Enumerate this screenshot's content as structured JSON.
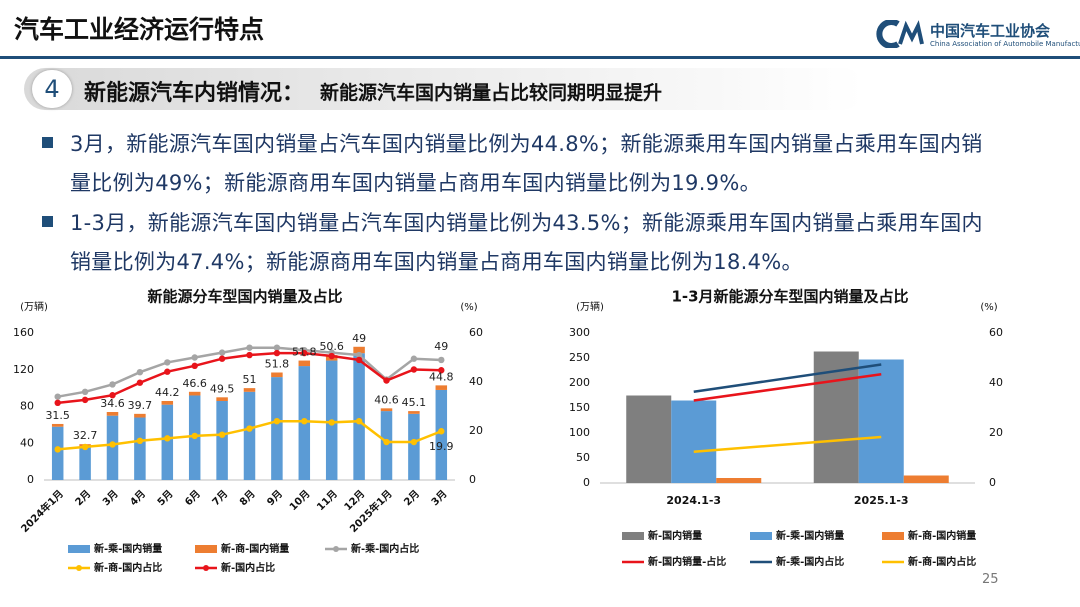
{
  "header": {
    "title": "汽车工业经济运行特点",
    "logo_cn": "中国汽车工业协会",
    "logo_en": "China Association of Automobile Manufacturers"
  },
  "section": {
    "number": "4",
    "heading": "新能源汽车内销情况：",
    "subheading": "新能源汽车国内销量占比较同期明显提升"
  },
  "bullets": [
    [
      "3月，新能源汽车国内销量占汽车国内销量比例为44.8%；新能源乘用车国内销量占乘用车国内销",
      "量比例为49%；新能源商用车国内销量占商用车国内销量比例为19.9%。"
    ],
    [
      "1-3月，新能源汽车国内销量占汽车国内销量比例为43.5%；新能源乘用车国内销量占乘用车国内",
      "销量比例为47.4%；新能源商用车国内销量占商用车国内销量比例为18.4%。"
    ]
  ],
  "page_number": "25",
  "chart_data": [
    {
      "type": "combo",
      "title": "新能源分车型国内销量及占比",
      "y_label": "(万辆)",
      "y2_label": "(%)",
      "bar_mode": "stacked",
      "categories": [
        "2024年1月",
        "2月",
        "3月",
        "4月",
        "5月",
        "6月",
        "7月",
        "8月",
        "9月",
        "10月",
        "11月",
        "12月",
        "2025年1月",
        "2月",
        "3月"
      ],
      "ylim": [
        0,
        160
      ],
      "yticks": [
        0,
        40,
        80,
        120,
        160
      ],
      "y2lim": [
        0,
        60
      ],
      "y2ticks": [
        0,
        20,
        40,
        60
      ],
      "series": [
        {
          "name": "新-乘-国内销量",
          "kind": "bar",
          "color": "#5b9bd5",
          "values": [
            58,
            36,
            70,
            68,
            82,
            92,
            86,
            96,
            112,
            124,
            130,
            138,
            75,
            72,
            98
          ]
        },
        {
          "name": "新-商-国内销量",
          "kind": "bar",
          "color": "#ed7d31",
          "values": [
            3,
            3,
            4,
            4,
            4,
            4,
            4,
            4,
            5,
            6,
            6,
            7,
            3,
            3,
            5
          ]
        },
        {
          "name": "新-乘-国内占比",
          "kind": "line",
          "axis": "y2",
          "color": "#a5a5a5",
          "markers": true,
          "labels": "last",
          "label_position": "above",
          "values": [
            34,
            36,
            39,
            44,
            48,
            50,
            52,
            54,
            54,
            53,
            52,
            51,
            41,
            49.5,
            49
          ]
        },
        {
          "name": "新-商-国内占比",
          "kind": "line",
          "axis": "y2",
          "color": "#ffc000",
          "markers": true,
          "labels": "last",
          "label_position": "below",
          "values": [
            12.5,
            13.5,
            14.5,
            16,
            17,
            18,
            18.5,
            21,
            24,
            24,
            23.5,
            24,
            15.5,
            15.5,
            19.9
          ]
        },
        {
          "name": "新-国内占比",
          "kind": "line",
          "axis": "y2",
          "color": "#e8141b",
          "markers": true,
          "labels": "all",
          "label_position": "bar-top",
          "values": [
            31.5,
            32.7,
            34.6,
            39.7,
            44.2,
            46.6,
            49.5,
            51,
            51.8,
            51.8,
            50.6,
            49,
            40.6,
            45.1,
            44.8
          ]
        }
      ]
    },
    {
      "type": "combo",
      "title": "1-3月新能源分车型国内销量及占比",
      "y_label": "(万辆)",
      "y2_label": "(%)",
      "bar_mode": "grouped",
      "categories": [
        "2024.1-3",
        "2025.1-3"
      ],
      "ylim": [
        0,
        300
      ],
      "yticks": [
        0,
        50,
        100,
        150,
        200,
        250,
        300
      ],
      "y2lim": [
        0,
        60
      ],
      "y2ticks": [
        0,
        20,
        40,
        60
      ],
      "series": [
        {
          "name": "新-国内销量",
          "kind": "bar",
          "color": "#7f7f7f",
          "values": [
            175,
            263
          ]
        },
        {
          "name": "新-乘-国内销量",
          "kind": "bar",
          "color": "#5b9bd5",
          "values": [
            165,
            247
          ]
        },
        {
          "name": "新-商-国内销量",
          "kind": "bar",
          "color": "#ed7d31",
          "values": [
            10,
            15
          ]
        },
        {
          "name": "新-国内销量-占比",
          "kind": "line",
          "axis": "y2",
          "color": "#e8141b",
          "markers": false,
          "values": [
            33,
            43.5
          ]
        },
        {
          "name": "新-乘-国内占比",
          "kind": "line",
          "axis": "y2",
          "color": "#1f4e79",
          "markers": false,
          "values": [
            36.5,
            47.4
          ]
        },
        {
          "name": "新-商-国内占比",
          "kind": "line",
          "axis": "y2",
          "color": "#ffc000",
          "markers": false,
          "values": [
            12.5,
            18.4
          ]
        }
      ]
    }
  ]
}
